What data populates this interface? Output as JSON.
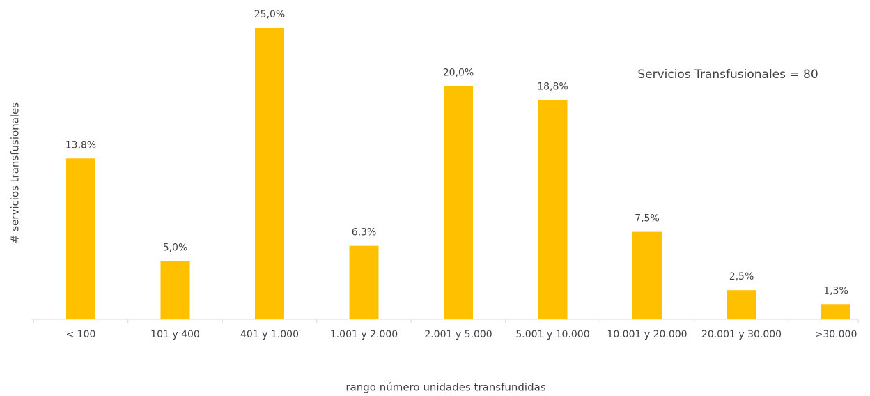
{
  "chart_data": {
    "type": "bar",
    "y_label": "# servicios transfusionales",
    "x_label": "rango número unidades transfundidas",
    "annotation": "Servicios Transfusionales = 80",
    "categories": [
      "< 100",
      "101 y 400",
      "401 y 1.000",
      "1.001 y 2.000",
      "2.001 y 5.000",
      "5.001 y 10.000",
      "10.001 y 20.000",
      "20.001 y 30.000",
      ">30.000"
    ],
    "values": [
      13.8,
      5.0,
      25.0,
      6.3,
      20.0,
      18.8,
      7.5,
      2.5,
      1.3
    ],
    "value_labels": [
      "13,8%",
      "5,0%",
      "25,0%",
      "6,3%",
      "20,0%",
      "18,8%",
      "7,5%",
      "2,5%",
      "1,3%"
    ],
    "color": "#ffc000",
    "ylim": [
      0,
      25
    ]
  }
}
